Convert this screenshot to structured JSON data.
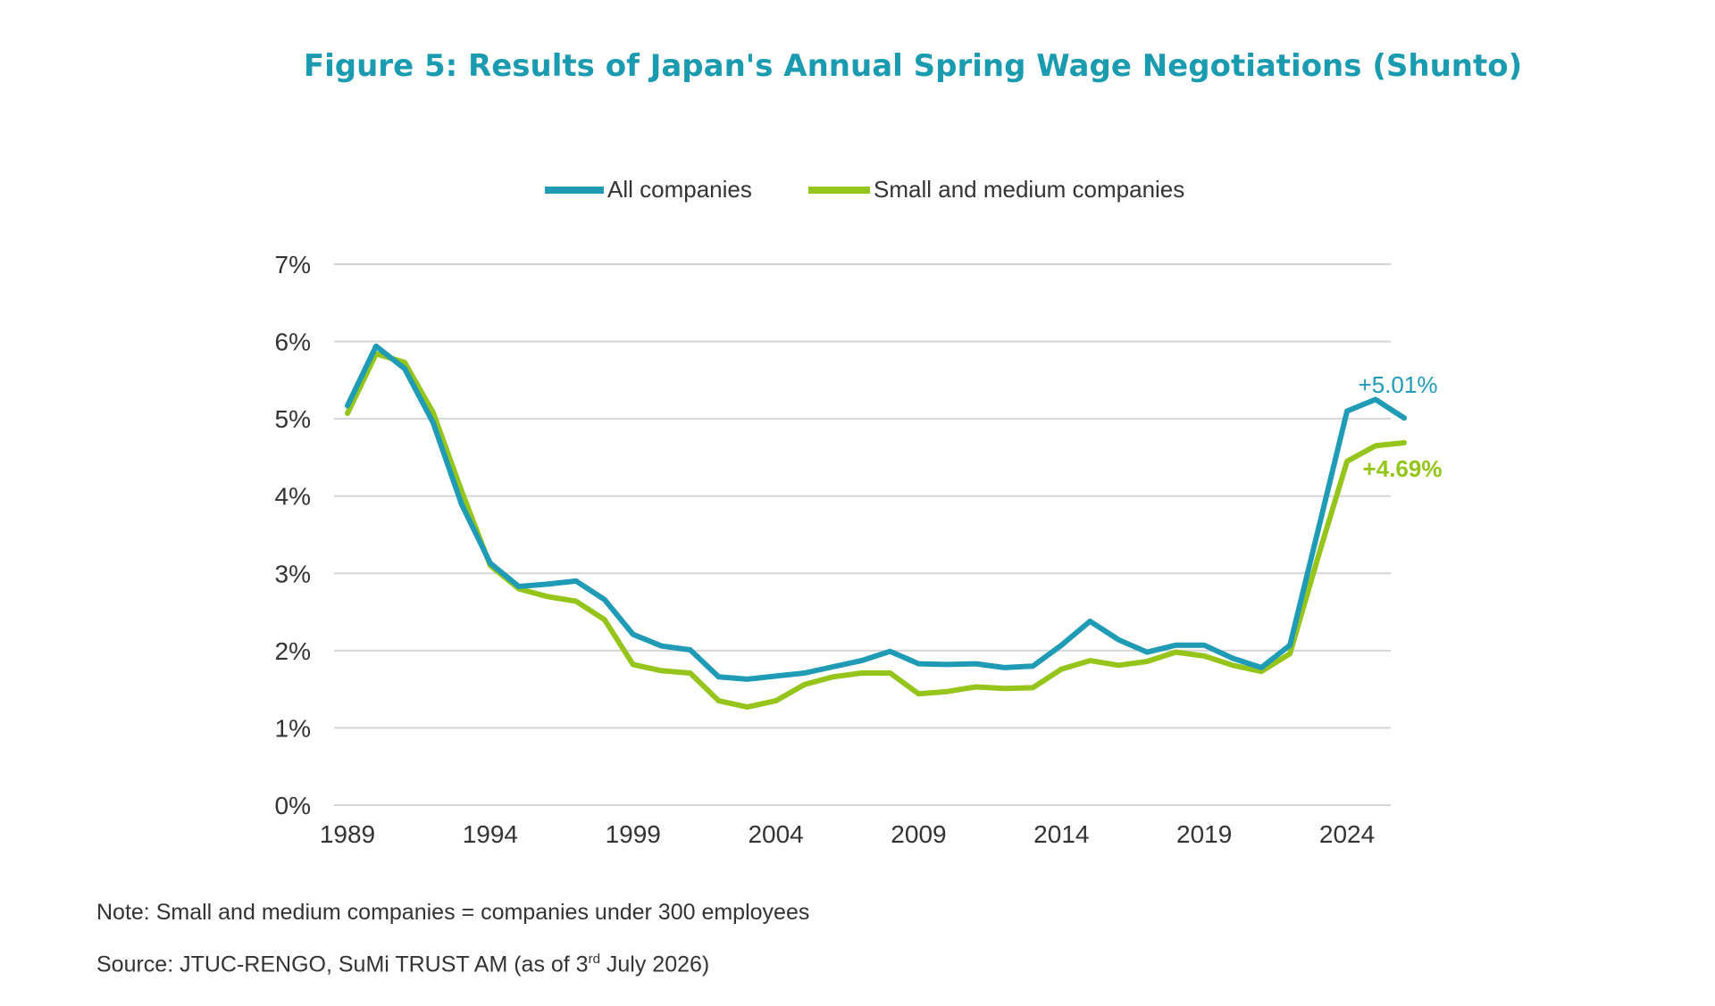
{
  "colors": {
    "title": "#1a9bb0",
    "all": "#1f9bb6",
    "sme": "#95c41a",
    "grid": "#d5d5d5",
    "text": "#333333"
  },
  "footer": {
    "note": "Note: Small and medium companies = companies under 300 employees",
    "source_prefix": "Source: JTUC-RENGO, SuMi TRUST AM (as of 3",
    "source_sup": "rd",
    "source_suffix": " July 2026)"
  },
  "chart_data": {
    "type": "line",
    "title": "Figure 5: Results of Japan's Annual Spring Wage Negotiations (Shunto)",
    "xlabel": "",
    "ylabel": "",
    "ylim": [
      0,
      7
    ],
    "xlim": [
      1989,
      2026
    ],
    "yticks": [
      "0%",
      "1%",
      "2%",
      "3%",
      "4%",
      "5%",
      "6%",
      "7%"
    ],
    "xticks": [
      "1989",
      "1994",
      "1999",
      "2004",
      "2009",
      "2014",
      "2019",
      "2024"
    ],
    "grid": true,
    "legend_position": "top-center",
    "x": [
      1989,
      1990,
      1991,
      1992,
      1993,
      1994,
      1995,
      1996,
      1997,
      1998,
      1999,
      2000,
      2001,
      2002,
      2003,
      2004,
      2005,
      2006,
      2007,
      2008,
      2009,
      2010,
      2011,
      2012,
      2013,
      2014,
      2015,
      2016,
      2017,
      2018,
      2019,
      2020,
      2021,
      2022,
      2023,
      2024,
      2025,
      2026
    ],
    "series": [
      {
        "name": "All companies",
        "values": [
          5.17,
          5.94,
          5.65,
          4.95,
          3.89,
          3.13,
          2.83,
          2.86,
          2.9,
          2.66,
          2.21,
          2.06,
          2.01,
          1.66,
          1.63,
          1.67,
          1.71,
          1.79,
          1.87,
          1.99,
          1.83,
          1.82,
          1.83,
          1.78,
          1.8,
          2.07,
          2.38,
          2.14,
          1.98,
          2.07,
          2.07,
          1.9,
          1.78,
          2.07,
          3.58,
          5.1,
          5.25,
          5.01
        ],
        "end_label": "+5.01%"
      },
      {
        "name": "Small and medium companies",
        "values": [
          5.07,
          5.84,
          5.73,
          5.08,
          4.06,
          3.1,
          2.8,
          2.7,
          2.64,
          2.4,
          1.82,
          1.74,
          1.71,
          1.35,
          1.27,
          1.35,
          1.56,
          1.66,
          1.71,
          1.71,
          1.44,
          1.47,
          1.53,
          1.51,
          1.52,
          1.76,
          1.87,
          1.81,
          1.86,
          1.98,
          1.93,
          1.81,
          1.73,
          1.96,
          3.23,
          4.45,
          4.65,
          4.69
        ],
        "end_label": "+4.69%"
      }
    ]
  }
}
